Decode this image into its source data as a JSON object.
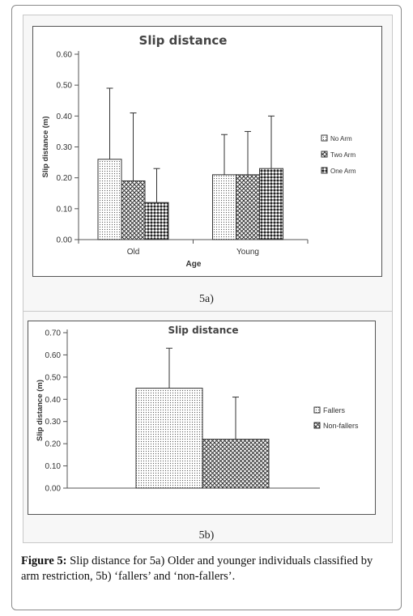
{
  "caption": {
    "label": "Figure 5:",
    "text": " Slip distance for 5a) Older and younger individuals classified by arm restriction, 5b) ‘fallers’ and ‘non-fallers’."
  },
  "panel_labels": [
    "5a)",
    "5b)"
  ],
  "chart_data": [
    {
      "type": "bar",
      "title": "Slip distance",
      "xlabel": "Age",
      "ylabel": "Slip distance (m)",
      "categories": [
        "Old",
        "Young"
      ],
      "yticks": [
        "0.00",
        "0.10",
        "0.20",
        "0.30",
        "0.40",
        "0.50",
        "0.60"
      ],
      "ylim": [
        0,
        0.6
      ],
      "legend_position": "right",
      "series": [
        {
          "name": "No Arm",
          "values": [
            0.26,
            0.21
          ],
          "error": [
            0.23,
            0.13
          ],
          "pattern": "dots"
        },
        {
          "name": "Two Arm",
          "values": [
            0.19,
            0.21
          ],
          "error": [
            0.22,
            0.14
          ],
          "pattern": "crosshatch"
        },
        {
          "name": "One Arm",
          "values": [
            0.12,
            0.23
          ],
          "error": [
            0.11,
            0.17
          ],
          "pattern": "diamond"
        }
      ]
    },
    {
      "type": "bar",
      "title": "Slip distance",
      "xlabel": "",
      "ylabel": "Slip distance (m)",
      "categories": [
        ""
      ],
      "yticks": [
        "0.00",
        "0.10",
        "0.20",
        "0.30",
        "0.40",
        "0.50",
        "0.60",
        "0.70"
      ],
      "ylim": [
        0,
        0.7
      ],
      "legend_position": "right",
      "series": [
        {
          "name": "Fallers",
          "values": [
            0.45
          ],
          "error": [
            0.18
          ],
          "pattern": "dots"
        },
        {
          "name": "Non-fallers",
          "values": [
            0.22
          ],
          "error": [
            0.19
          ],
          "pattern": "crosshatch"
        }
      ]
    }
  ]
}
